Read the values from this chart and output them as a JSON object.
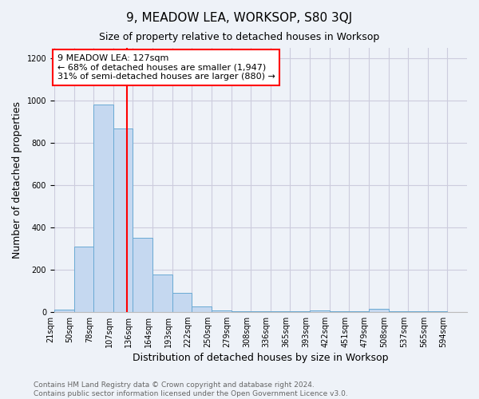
{
  "title": "9, MEADOW LEA, WORKSOP, S80 3QJ",
  "subtitle": "Size of property relative to detached houses in Worksop",
  "xlabel": "Distribution of detached houses by size in Worksop",
  "ylabel": "Number of detached properties",
  "bin_labels": [
    "21sqm",
    "50sqm",
    "78sqm",
    "107sqm",
    "136sqm",
    "164sqm",
    "193sqm",
    "222sqm",
    "250sqm",
    "279sqm",
    "308sqm",
    "336sqm",
    "365sqm",
    "393sqm",
    "422sqm",
    "451sqm",
    "479sqm",
    "508sqm",
    "537sqm",
    "565sqm",
    "594sqm"
  ],
  "bar_heights": [
    10,
    310,
    980,
    870,
    350,
    175,
    90,
    25,
    5,
    3,
    2,
    2,
    2,
    5,
    2,
    2,
    15,
    2,
    2,
    2,
    0
  ],
  "bar_color": "#c5d8f0",
  "bar_edgecolor": "#6aaad4",
  "vline_index": 3.6,
  "vline_color": "red",
  "ylim": [
    0,
    1250
  ],
  "yticks": [
    0,
    200,
    400,
    600,
    800,
    1000,
    1200
  ],
  "annotation_text": "9 MEADOW LEA: 127sqm\n← 68% of detached houses are smaller (1,947)\n31% of semi-detached houses are larger (880) →",
  "annotation_box_color": "white",
  "annotation_box_edgecolor": "red",
  "footer_text": "Contains HM Land Registry data © Crown copyright and database right 2024.\nContains public sector information licensed under the Open Government Licence v3.0.",
  "background_color": "#eef2f8",
  "grid_color": "#ccccdd",
  "title_fontsize": 11,
  "subtitle_fontsize": 9,
  "axis_label_fontsize": 9,
  "tick_fontsize": 7,
  "annotation_fontsize": 8,
  "footer_fontsize": 6.5
}
